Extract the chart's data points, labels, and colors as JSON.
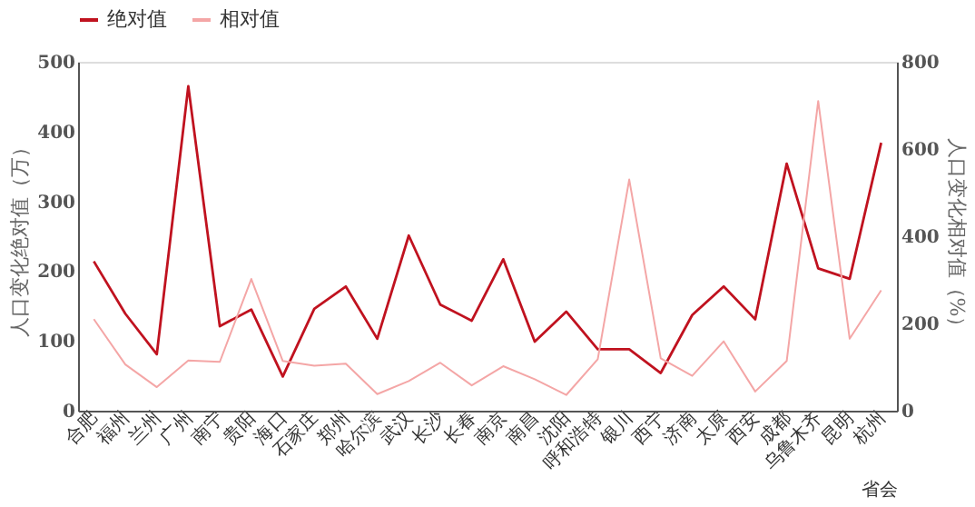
{
  "chart_data": {
    "type": "line",
    "xlabel": "省会",
    "ylabel": "人口变化绝对值（万）",
    "y2label": "人口变化相对值（%）",
    "categories": [
      "合肥",
      "福州",
      "兰州",
      "广州",
      "南宁",
      "贵阳",
      "海口",
      "石家庄",
      "郑州",
      "哈尔滨",
      "武汉",
      "长沙",
      "长春",
      "南京",
      "南昌",
      "沈阳",
      "呼和浩特",
      "银川",
      "西宁",
      "济南",
      "太原",
      "西安",
      "成都",
      "乌鲁木齐",
      "昆明",
      "杭州"
    ],
    "series": [
      {
        "name": "绝对值",
        "color": "#c0121f",
        "values": [
          214,
          139,
          81,
          465,
          121,
          145,
          49,
          146,
          178,
          103,
          251,
          152,
          129,
          217,
          99,
          142,
          88,
          88,
          54,
          137,
          178,
          131,
          354,
          204,
          189,
          384
        ]
      },
      {
        "name": "相对值",
        "color": "#f4a6a6",
        "axis": "y2",
        "values": [
          210,
          106,
          54,
          115,
          112,
          302,
          114,
          103,
          108,
          38,
          68,
          110,
          58,
          102,
          72,
          36,
          118,
          530,
          120,
          80,
          159,
          44,
          114,
          710,
          165,
          276
        ]
      }
    ],
    "ylim": [
      0,
      500
    ],
    "yticks": [
      0,
      100,
      200,
      300,
      400,
      500
    ],
    "y2lim": [
      0,
      800
    ],
    "y2ticks": [
      0,
      200,
      400,
      600,
      800
    ],
    "legend": "top",
    "grid": false,
    "marker": "none",
    "line_style": "solid"
  }
}
